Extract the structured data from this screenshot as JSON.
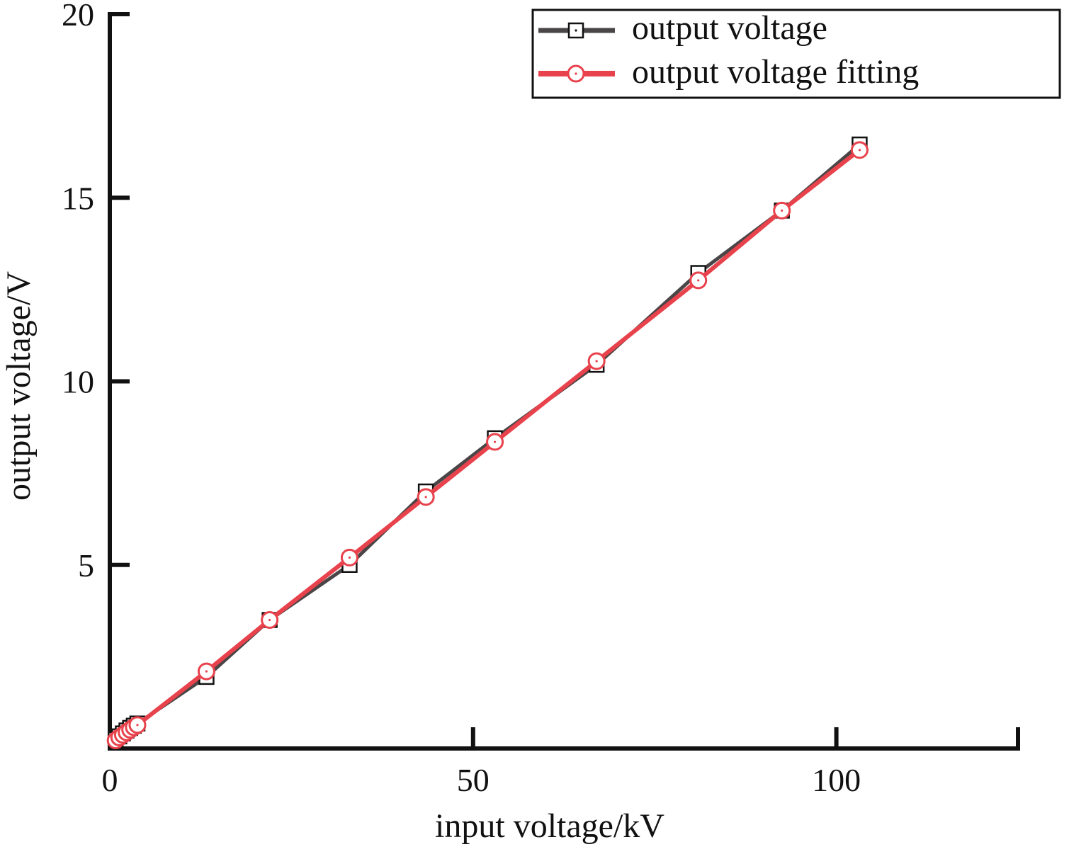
{
  "chart_data": {
    "type": "line",
    "xlabel": "input voltage/kV",
    "ylabel": "output voltage/V",
    "xlim": [
      0,
      125
    ],
    "ylim": [
      0,
      20
    ],
    "x_ticks": [
      0,
      50,
      100
    ],
    "x_tick_labels": [
      "0",
      "50",
      "100"
    ],
    "y_ticks": [
      5,
      10,
      15,
      20
    ],
    "y_tick_labels": [
      "5",
      "10",
      "15",
      "20"
    ],
    "grid": false,
    "legend_position": "top-right",
    "series": [
      {
        "name": "output voltage",
        "color": "#4a4546",
        "marker": "square",
        "x": [
          0.8,
          1.3,
          1.8,
          2.3,
          2.8,
          3.3,
          3.8,
          13.3,
          22.0,
          33.0,
          43.5,
          53.0,
          67.0,
          81.0,
          92.5,
          103.2
        ],
        "y": [
          0.25,
          0.33,
          0.41,
          0.49,
          0.56,
          0.62,
          0.68,
          1.95,
          3.5,
          5.0,
          7.0,
          8.45,
          10.45,
          12.95,
          14.65,
          16.45
        ]
      },
      {
        "name": "output voltage fitting",
        "color": "#e8424c",
        "marker": "circle",
        "x": [
          0.8,
          1.3,
          1.8,
          2.3,
          2.8,
          3.3,
          3.8,
          13.3,
          22.0,
          33.0,
          43.5,
          53.0,
          67.0,
          81.0,
          92.5,
          103.2
        ],
        "y": [
          0.22,
          0.3,
          0.37,
          0.44,
          0.51,
          0.58,
          0.64,
          2.1,
          3.5,
          5.2,
          6.85,
          8.35,
          10.55,
          12.75,
          14.65,
          16.3
        ]
      }
    ]
  }
}
